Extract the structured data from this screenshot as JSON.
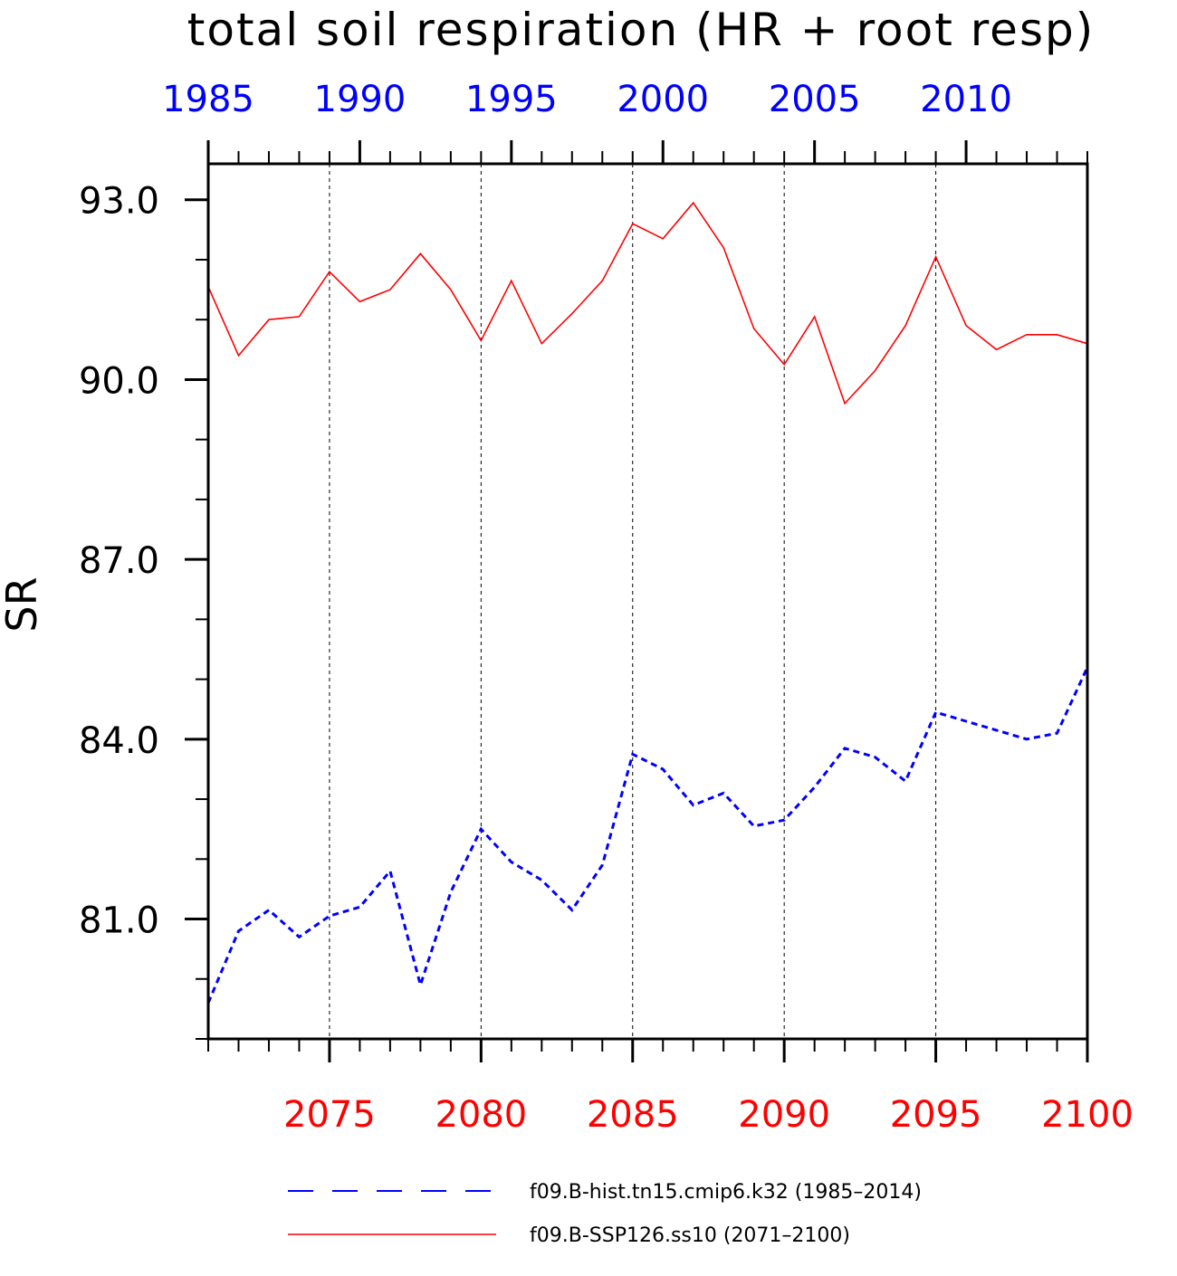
{
  "chart_data": {
    "type": "line",
    "title": "total soil respiration (HR + root resp)",
    "ylabel": "SR",
    "xlabel": "",
    "ylim": [
      79.0,
      93.6
    ],
    "yticks": [
      {
        "value": 93.0,
        "label": "93.0"
      },
      {
        "value": 90.0,
        "label": "90.0"
      },
      {
        "value": 87.0,
        "label": "87.0"
      },
      {
        "value": 84.0,
        "label": "84.0"
      },
      {
        "value": 81.0,
        "label": "81.0"
      }
    ],
    "y_minor_step": 1.0,
    "bottom_axis": {
      "range": [
        2071,
        2100
      ],
      "ticks": [
        "2075",
        "2080",
        "2085",
        "2090",
        "2095",
        "2100"
      ],
      "color": "#ff0000"
    },
    "top_axis": {
      "range": [
        1985,
        2014
      ],
      "ticks": [
        "1985",
        "1990",
        "1995",
        "2000",
        "2005",
        "2010"
      ],
      "color": "#0000ff"
    },
    "grid": "vertical dashed at major bottom ticks",
    "legend_placement": "bottom",
    "series": [
      {
        "name": "f09.B-hist.tn15.cmip6.k32 (1985–2014)",
        "color": "#0000ff",
        "style": "dashed",
        "axis": "top",
        "x": [
          1985,
          1986,
          1987,
          1988,
          1989,
          1990,
          1991,
          1992,
          1993,
          1994,
          1995,
          1996,
          1997,
          1998,
          1999,
          2000,
          2001,
          2002,
          2003,
          2004,
          2005,
          2006,
          2007,
          2008,
          2009,
          2010,
          2011,
          2012,
          2013,
          2014
        ],
        "values": [
          79.6,
          80.8,
          81.15,
          80.7,
          81.05,
          81.2,
          81.8,
          79.9,
          81.45,
          82.5,
          81.95,
          81.65,
          81.15,
          81.9,
          83.75,
          83.5,
          82.9,
          83.1,
          82.55,
          82.65,
          83.2,
          83.85,
          83.7,
          83.3,
          84.45,
          84.3,
          84.15,
          84.0,
          84.1,
          85.2
        ]
      },
      {
        "name": "f09.B-SSP126.ss10 (2071–2100)",
        "color": "#ff0000",
        "style": "solid",
        "axis": "bottom",
        "x": [
          2071,
          2072,
          2073,
          2074,
          2075,
          2076,
          2077,
          2078,
          2079,
          2080,
          2081,
          2082,
          2083,
          2084,
          2085,
          2086,
          2087,
          2088,
          2089,
          2090,
          2091,
          2092,
          2093,
          2094,
          2095,
          2096,
          2097,
          2098,
          2099,
          2100
        ],
        "values": [
          91.55,
          90.4,
          91.0,
          91.05,
          91.8,
          91.3,
          91.5,
          92.1,
          91.5,
          90.65,
          91.65,
          90.6,
          91.1,
          91.65,
          92.6,
          92.35,
          92.95,
          92.2,
          90.85,
          90.25,
          91.05,
          89.6,
          90.15,
          90.9,
          92.05,
          90.9,
          90.5,
          90.75,
          90.75,
          90.6
        ]
      }
    ]
  }
}
